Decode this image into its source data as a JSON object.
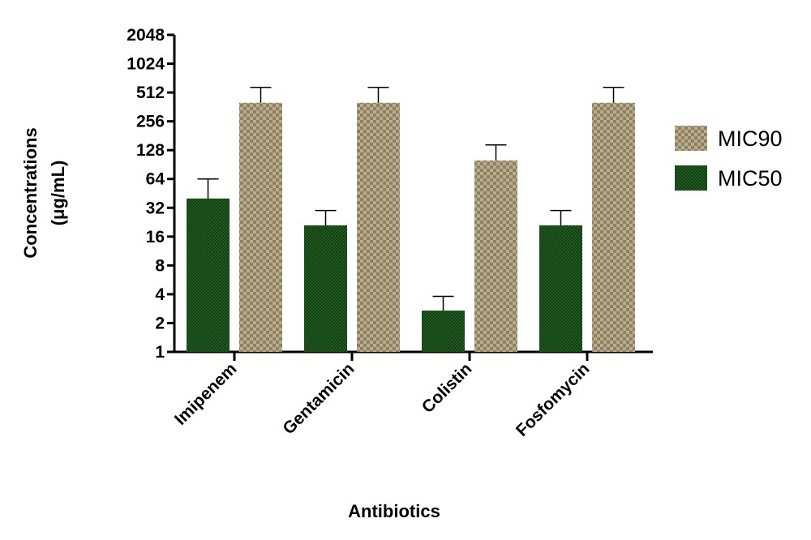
{
  "chart_data": {
    "type": "bar",
    "y_scale": "log2",
    "ylim": [
      1,
      2048
    ],
    "yticks": [
      "1",
      "2",
      "4",
      "8",
      "16",
      "32",
      "64",
      "128",
      "256",
      "512",
      "1024",
      "2048"
    ],
    "categories": [
      "Imipenem",
      "Gentamicin",
      "Colistin",
      "Fosfomycin"
    ],
    "ylabel_line1": "Concentrations",
    "ylabel_line2": "(μg/mL)",
    "xlabel": "Antibiotics",
    "legend_position": "right",
    "series": [
      {
        "name": "MIC50",
        "color": "#1f5a1f",
        "values": [
          40,
          21,
          2.7,
          21
        ],
        "error_upper": [
          64,
          30,
          3.8,
          30
        ]
      },
      {
        "name": "MIC90",
        "color": "#b7ab88",
        "values": [
          400,
          400,
          100,
          400
        ],
        "error_upper": [
          580,
          580,
          145,
          580
        ]
      }
    ],
    "legend": [
      {
        "label": "MIC90",
        "series_index": 1
      },
      {
        "label": "MIC50",
        "series_index": 0
      }
    ]
  }
}
